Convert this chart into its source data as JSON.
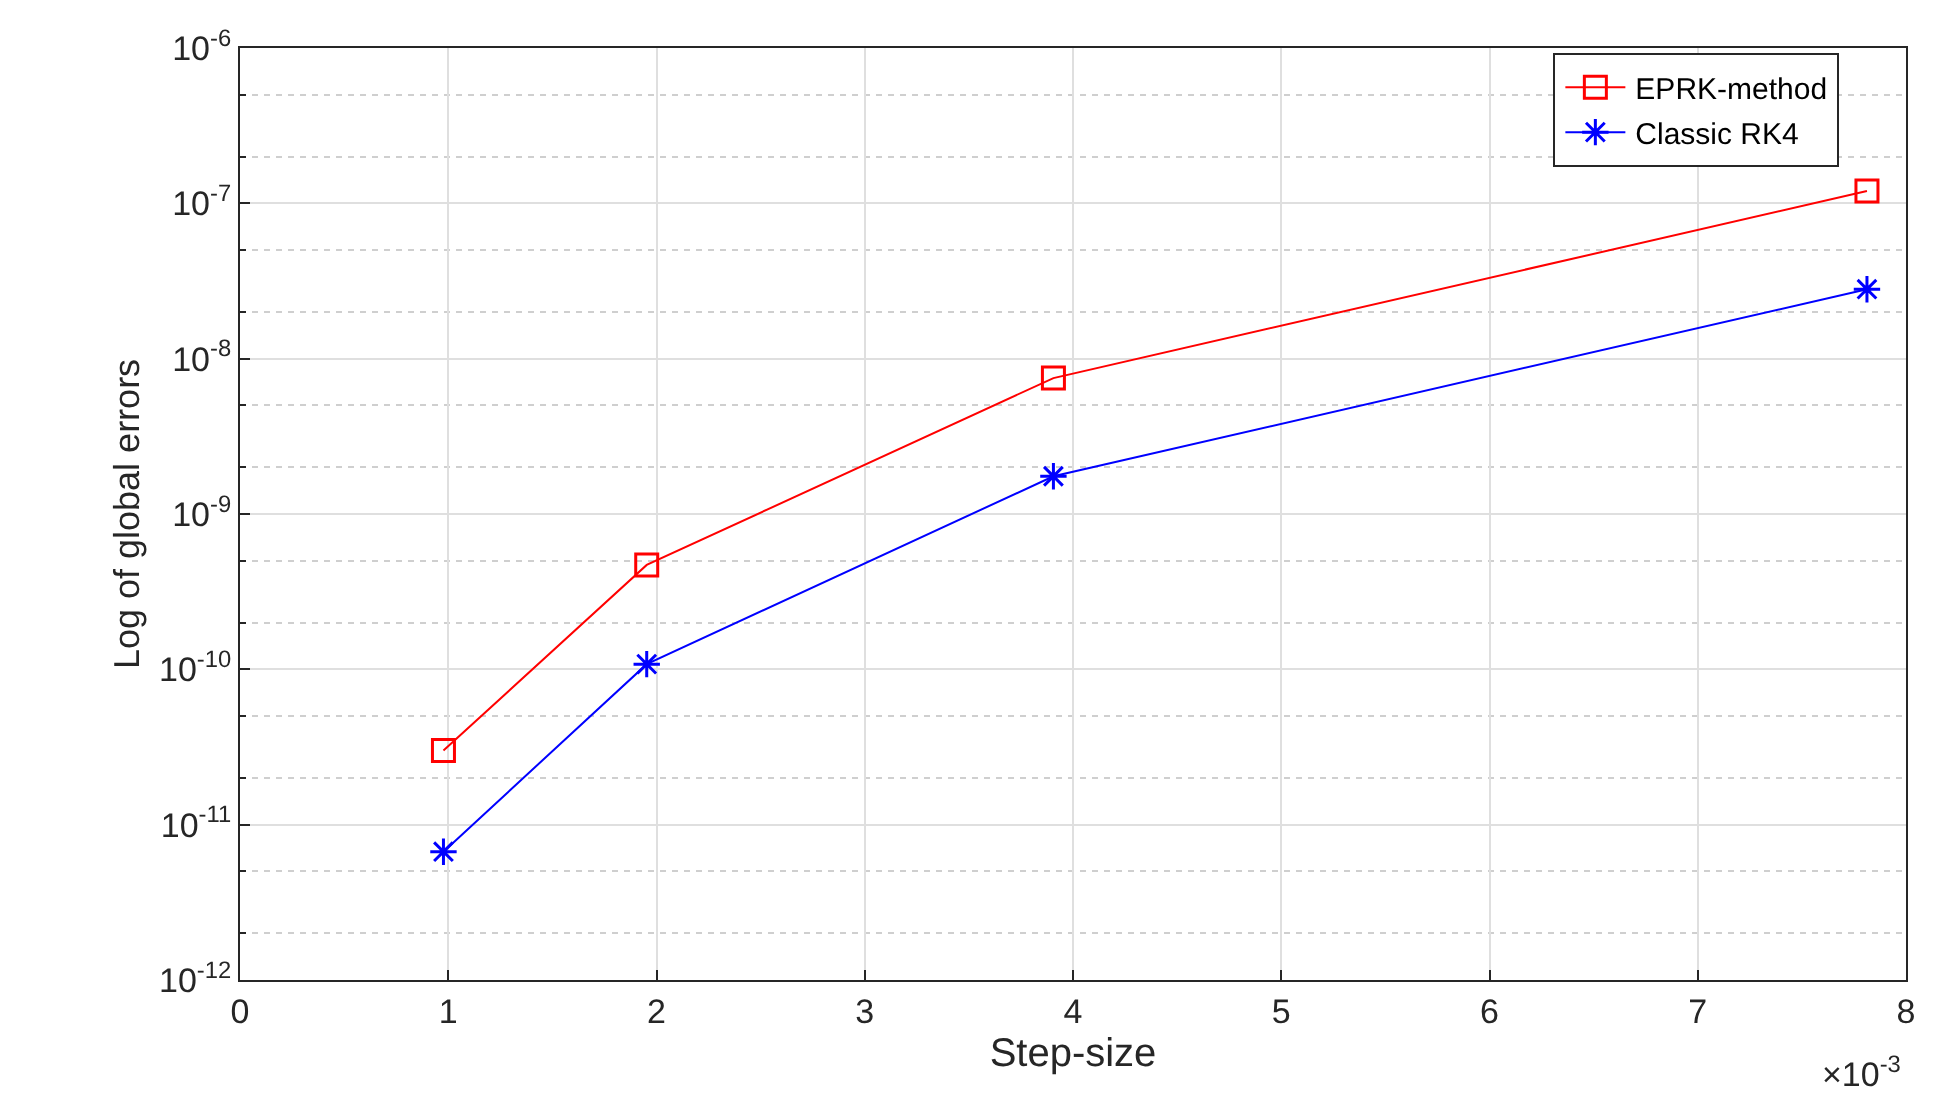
{
  "chart_data": {
    "type": "line",
    "xlabel": "Step-size",
    "ylabel": "Log of global errors",
    "annotations": [
      "×10$^{-3}$"
    ],
    "x": [
      0.977,
      1.953,
      3.906,
      7.8125
    ],
    "series": [
      {
        "name": "EPRK-method",
        "color": "#ff0000",
        "marker": "square",
        "values": [
          3e-11,
          4.7e-10,
          7.5e-09,
          1.2e-07
        ]
      },
      {
        "name": "Classic RK4",
        "color": "#0000ff",
        "marker": "cross",
        "values": [
          6.7e-12,
          1.08e-10,
          1.75e-09,
          2.8e-08
        ]
      }
    ],
    "log": "y",
    "grid": true,
    "legend": "top right",
    "line_style": "solid",
    "xlim": [
      0,
      8
    ],
    "xticks": [
      0,
      1,
      2,
      3,
      4,
      5,
      6,
      7,
      8
    ],
    "ylim": [
      1e-12,
      1e-06
    ],
    "yticks": [
      {
        "value": 1e-12,
        "label": "10$^{-12}$"
      },
      {
        "value": 1e-11,
        "label": "10$^{-11}$"
      },
      {
        "value": 1e-10,
        "label": "10$^{-10}$"
      },
      {
        "value": 1e-09,
        "label": "10$^{-9}$"
      },
      {
        "value": 1e-08,
        "label": "10$^{-8}$"
      },
      {
        "value": 1e-07,
        "label": "10$^{-7}$"
      },
      {
        "value": 1e-06,
        "label": "10$^{-6}$"
      }
    ]
  }
}
